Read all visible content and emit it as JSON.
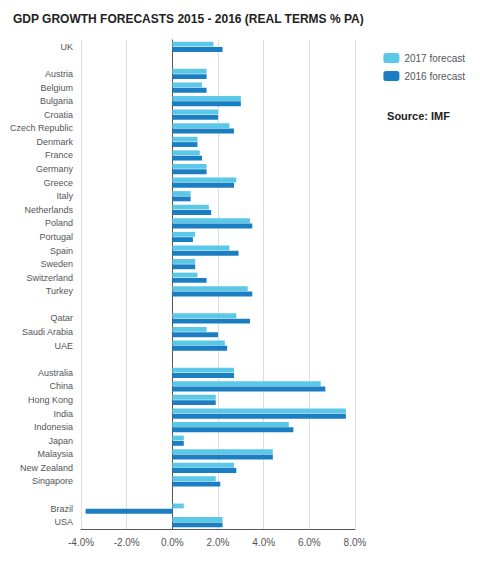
{
  "chart_data": {
    "type": "bar",
    "orientation": "horizontal",
    "title": "GDP GROWTH FORECASTS 2015 - 2016 (REAL TERMS % PA)",
    "annotation": "Source: IMF",
    "categories": [
      "UK",
      null,
      "Austria",
      "Belgium",
      "Bulgaria",
      "Croatia",
      "Czech Republic",
      "Denmark",
      "France",
      "Germany",
      "Greece",
      "Italy",
      "Netherlands",
      "Poland",
      "Portugal",
      "Spain",
      "Sweden",
      "Switzerland",
      "Turkey",
      null,
      "Qatar",
      "Saudi Arabia",
      "UAE",
      null,
      "Australia",
      "China",
      "Hong Kong",
      "India",
      "Indonesia",
      "Japan",
      "Malaysia",
      "New Zealand",
      "Singapore",
      null,
      "Brazil",
      "USA"
    ],
    "series": [
      {
        "name": "2017 forecast",
        "color": "#5BC8E8",
        "values": [
          1.8,
          null,
          1.5,
          1.3,
          3.0,
          2.0,
          2.5,
          1.1,
          1.2,
          1.5,
          2.8,
          0.8,
          1.6,
          3.4,
          1.0,
          2.5,
          1.0,
          1.1,
          3.3,
          null,
          2.8,
          1.5,
          2.3,
          null,
          2.7,
          6.5,
          1.9,
          7.6,
          5.1,
          0.5,
          4.4,
          2.7,
          1.9,
          null,
          0.5,
          2.2
        ]
      },
      {
        "name": "2016 forecast",
        "color": "#1B7EC2",
        "values": [
          2.2,
          null,
          1.5,
          1.5,
          3.0,
          2.0,
          2.7,
          1.1,
          1.3,
          1.5,
          2.7,
          0.8,
          1.7,
          3.5,
          0.9,
          2.9,
          1.0,
          1.5,
          3.5,
          null,
          3.4,
          2.0,
          2.4,
          null,
          2.7,
          6.7,
          1.9,
          7.6,
          5.3,
          0.5,
          4.4,
          2.8,
          2.1,
          null,
          -3.8,
          2.2
        ]
      }
    ],
    "xlim": [
      -4.0,
      8.0
    ],
    "xticks": [
      {
        "value": -4.0,
        "label": "-4.0%"
      },
      {
        "value": -2.0,
        "label": "-2.0%"
      },
      {
        "value": 0.0,
        "label": "0.0%"
      },
      {
        "value": 2.0,
        "label": "2.0%"
      },
      {
        "value": 4.0,
        "label": "4.0%"
      },
      {
        "value": 6.0,
        "label": "6.0%"
      },
      {
        "value": 8.0,
        "label": "8.0%"
      }
    ],
    "grid": true,
    "legend": "upper right"
  }
}
